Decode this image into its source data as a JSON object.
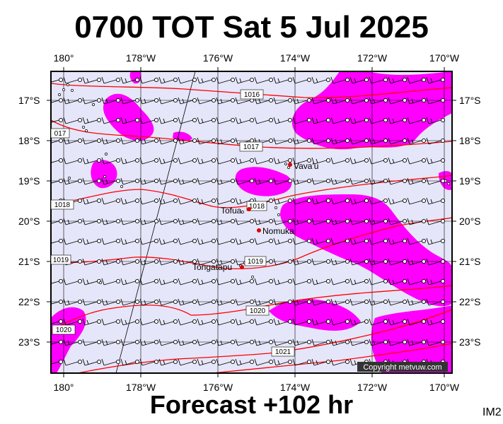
{
  "title": "0700 TOT Sat 5 Jul 2025",
  "forecast_label": "Forecast +102 hr",
  "image_tag": "IM2",
  "copyright": "Copyright metvuw.com",
  "colors": {
    "background": "#e6e6fa",
    "rain": "#ff00ff",
    "isobar": "#ff0000",
    "place_marker": "#dd0000"
  },
  "lon_labels": [
    "180°",
    "178°W",
    "176°W",
    "174°W",
    "172°W",
    "170°W"
  ],
  "lat_labels": [
    "17°S",
    "18°S",
    "19°S",
    "20°S",
    "21°S",
    "22°S",
    "23°S"
  ],
  "isobar_labels": [
    "1016",
    "1017",
    "017",
    "1018",
    "1018",
    "1019",
    "1019",
    "1020",
    "1020",
    "1021"
  ],
  "places": [
    "Vava'u",
    "Tofua",
    "Nomuka",
    "Tongatapu"
  ]
}
